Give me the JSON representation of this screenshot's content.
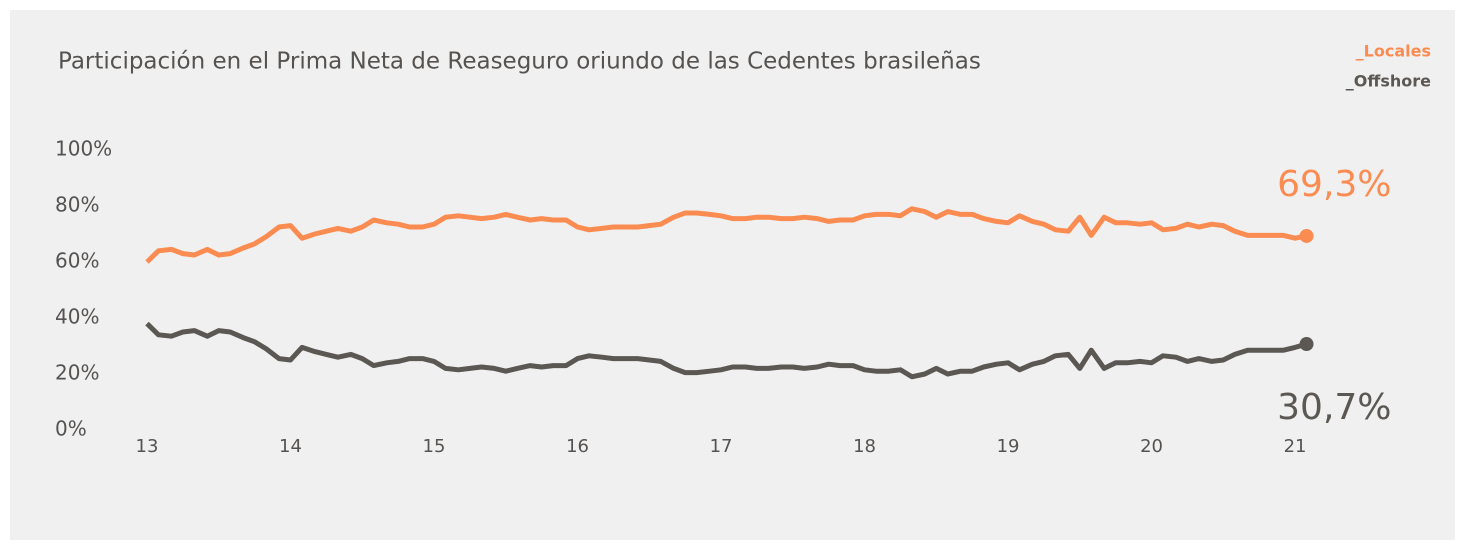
{
  "chart_data": {
    "type": "line",
    "title": "Participación en el Prima Neta de Reaseguro oriundo de las Cedentes brasileñas",
    "x": [
      13,
      13.08,
      13.17,
      13.25,
      13.33,
      13.42,
      13.5,
      13.58,
      13.67,
      13.75,
      13.83,
      13.92,
      14,
      14.08,
      14.17,
      14.25,
      14.33,
      14.42,
      14.5,
      14.58,
      14.67,
      14.75,
      14.83,
      14.92,
      15,
      15.08,
      15.17,
      15.25,
      15.33,
      15.42,
      15.5,
      15.58,
      15.67,
      15.75,
      15.83,
      15.92,
      16,
      16.08,
      16.17,
      16.25,
      16.33,
      16.42,
      16.5,
      16.58,
      16.67,
      16.75,
      16.83,
      16.92,
      17,
      17.08,
      17.17,
      17.25,
      17.33,
      17.42,
      17.5,
      17.58,
      17.67,
      17.75,
      17.83,
      17.92,
      18,
      18.08,
      18.17,
      18.25,
      18.33,
      18.42,
      18.5,
      18.58,
      18.67,
      18.75,
      18.83,
      18.92,
      19,
      19.08,
      19.17,
      19.25,
      19.33,
      19.42,
      19.5,
      19.58,
      19.67,
      19.75,
      19.83,
      19.92,
      20,
      20.08,
      20.17,
      20.25,
      20.33,
      20.42,
      20.5,
      20.58,
      20.67,
      20.75,
      20.83,
      20.92,
      21,
      21.08
    ],
    "series": [
      {
        "name": "_Locales",
        "color": "#fa8c52",
        "values": [
          60,
          64,
          64.5,
          63,
          62.5,
          64.5,
          62.5,
          63,
          65,
          66.5,
          69,
          72.5,
          73,
          68.5,
          70,
          71,
          72,
          71,
          72.5,
          75,
          74,
          73.5,
          72.5,
          72.5,
          73.5,
          76,
          76.5,
          76,
          75.5,
          76,
          77,
          76,
          75,
          75.5,
          75,
          75,
          72.5,
          71.5,
          72,
          72.5,
          72.5,
          72.5,
          73,
          73.5,
          76,
          77.5,
          77.5,
          77,
          76.5,
          75.5,
          75.5,
          76,
          76,
          75.5,
          75.5,
          76,
          75.5,
          74.5,
          75,
          75,
          76.5,
          77,
          77,
          76.5,
          79,
          78,
          76,
          78,
          77,
          77,
          75.5,
          74.5,
          74,
          76.5,
          74.5,
          73.5,
          71.5,
          71,
          76,
          69.5,
          76,
          74,
          74,
          73.5,
          74,
          71.5,
          72,
          73.5,
          72.5,
          73.5,
          73,
          71,
          69.5,
          69.5,
          69.5,
          69.5,
          68.5,
          69.3
        ],
        "value_labels": [
          null,
          null,
          null,
          null,
          null,
          null,
          null,
          null,
          null,
          null,
          null,
          null,
          null,
          null,
          null,
          null,
          null,
          null,
          null,
          null,
          null,
          null,
          null,
          null,
          null,
          null,
          null,
          null,
          null,
          null,
          null,
          null,
          null,
          null,
          null,
          null,
          null,
          null,
          null,
          null,
          null,
          null,
          null,
          null,
          null,
          null,
          null,
          null,
          null,
          null,
          null,
          null,
          null,
          null,
          null,
          null,
          null,
          null,
          null,
          null,
          null,
          null,
          null,
          null,
          null,
          null,
          null,
          null,
          null,
          null,
          null,
          null,
          null,
          null,
          null,
          null,
          null,
          null,
          null,
          null,
          null,
          null,
          null,
          null,
          null,
          null,
          null,
          null,
          null,
          null,
          null,
          null,
          null,
          null,
          null,
          null,
          null,
          "69,3%"
        ]
      },
      {
        "name": "_Offshore",
        "color": "#5b5752",
        "values": [
          38,
          34,
          33.5,
          35,
          35.5,
          33.5,
          35.5,
          35,
          33,
          31.5,
          29,
          25.5,
          25,
          29.5,
          28,
          27,
          26,
          27,
          25.5,
          23,
          24,
          24.5,
          25.5,
          25.5,
          24.5,
          22,
          21.5,
          22,
          22.5,
          22,
          21,
          22,
          23,
          22.5,
          23,
          23,
          25.5,
          26.5,
          26,
          25.5,
          25.5,
          25.5,
          25,
          24.5,
          22,
          20.5,
          20.5,
          21,
          21.5,
          22.5,
          22.5,
          22,
          22,
          22.5,
          22.5,
          22,
          22.5,
          23.5,
          23,
          23,
          21.5,
          21,
          21,
          21.5,
          19,
          20,
          22,
          20,
          21,
          21,
          22.5,
          23.5,
          24,
          21.5,
          23.5,
          24.5,
          26.5,
          27,
          22,
          28.5,
          22,
          24,
          24,
          24.5,
          24,
          26.5,
          26,
          24.5,
          25.5,
          24.5,
          25,
          27,
          28.5,
          28.5,
          28.5,
          28.5,
          29.5,
          30.7
        ],
        "value_labels": [
          null,
          null,
          null,
          null,
          null,
          null,
          null,
          null,
          null,
          null,
          null,
          null,
          null,
          null,
          null,
          null,
          null,
          null,
          null,
          null,
          null,
          null,
          null,
          null,
          null,
          null,
          null,
          null,
          null,
          null,
          null,
          null,
          null,
          null,
          null,
          null,
          null,
          null,
          null,
          null,
          null,
          null,
          null,
          null,
          null,
          null,
          null,
          null,
          null,
          null,
          null,
          null,
          null,
          null,
          null,
          null,
          null,
          null,
          null,
          null,
          null,
          null,
          null,
          null,
          null,
          null,
          null,
          null,
          null,
          null,
          null,
          null,
          null,
          null,
          null,
          null,
          null,
          null,
          null,
          null,
          null,
          null,
          null,
          null,
          null,
          null,
          null,
          null,
          null,
          null,
          null,
          null,
          null,
          null,
          null,
          null,
          null,
          "30,7%"
        ]
      }
    ],
    "xlim": [
      13,
      21.1
    ],
    "xticks": [
      13,
      14,
      15,
      16,
      17,
      18,
      19,
      20,
      21
    ],
    "ylim": [
      0,
      100
    ],
    "yticks": [
      {
        "value": 0,
        "label": "0%"
      },
      {
        "value": 20,
        "label": "20%"
      },
      {
        "value": 40,
        "label": "40%"
      },
      {
        "value": 60,
        "label": "60%"
      },
      {
        "value": 80,
        "label": "80%"
      },
      {
        "value": 100,
        "label": "100%"
      }
    ],
    "grid": false,
    "legend": "top-right"
  }
}
